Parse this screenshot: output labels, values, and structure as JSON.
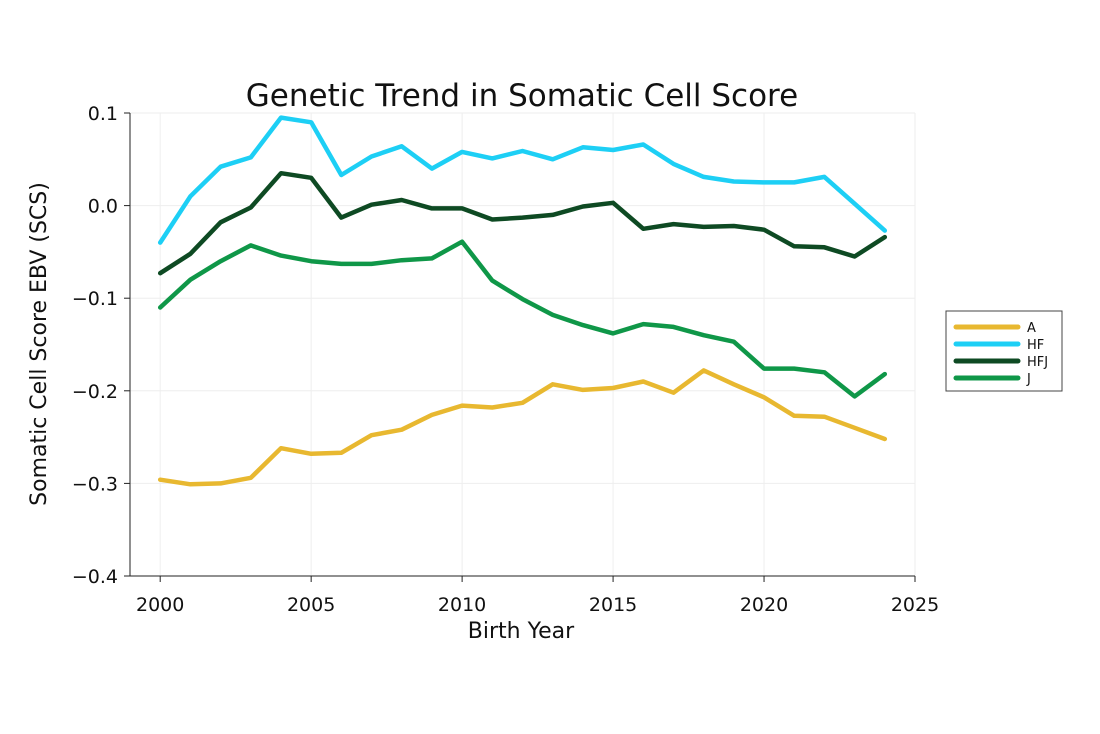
{
  "chart_data": {
    "type": "line",
    "title": "Genetic Trend in Somatic Cell Score",
    "xlabel": "Birth Year",
    "ylabel": "Somatic Cell Score EBV (SCS)",
    "xlim": [
      1999,
      2025
    ],
    "ylim": [
      -0.4,
      0.1
    ],
    "x_ticks": [
      2000,
      2005,
      2010,
      2015,
      2020,
      2025
    ],
    "x_tick_labels": [
      "2000",
      "2005",
      "2010",
      "2015",
      "2020",
      "2025"
    ],
    "y_ticks": [
      -0.4,
      -0.3,
      -0.2,
      -0.1,
      0.0,
      0.1
    ],
    "y_tick_labels": [
      "−0.4",
      "−0.3",
      "−0.2",
      "−0.1",
      "0.0",
      "0.1"
    ],
    "grid": true,
    "legend_position": "right",
    "x": [
      2000,
      2001,
      2002,
      2003,
      2004,
      2005,
      2006,
      2007,
      2008,
      2009,
      2010,
      2011,
      2012,
      2013,
      2014,
      2015,
      2016,
      2017,
      2018,
      2019,
      2020,
      2021,
      2022,
      2023,
      2024
    ],
    "series": [
      {
        "name": "A",
        "color": "#E8B830",
        "values": [
          -0.296,
          -0.301,
          -0.3,
          -0.294,
          -0.262,
          -0.268,
          -0.267,
          -0.248,
          -0.242,
          -0.226,
          -0.216,
          -0.218,
          -0.213,
          -0.193,
          -0.199,
          -0.197,
          -0.19,
          -0.202,
          -0.178,
          -0.193,
          -0.207,
          -0.227,
          -0.228,
          -0.24,
          -0.252
        ]
      },
      {
        "name": "HF",
        "color": "#1DCFF5",
        "values": [
          -0.04,
          0.01,
          0.042,
          0.052,
          0.095,
          0.09,
          0.033,
          0.053,
          0.064,
          0.04,
          0.058,
          0.051,
          0.059,
          0.05,
          0.063,
          0.06,
          0.066,
          0.045,
          0.031,
          0.026,
          0.025,
          0.025,
          0.031,
          0.002,
          -0.027
        ]
      },
      {
        "name": "HFJ",
        "color": "#0E4A23",
        "values": [
          -0.073,
          -0.052,
          -0.018,
          -0.002,
          0.035,
          0.03,
          -0.013,
          0.001,
          0.006,
          -0.003,
          -0.003,
          -0.015,
          -0.013,
          -0.01,
          -0.001,
          0.003,
          -0.025,
          -0.02,
          -0.023,
          -0.022,
          -0.026,
          -0.044,
          -0.045,
          -0.055,
          -0.034
        ]
      },
      {
        "name": "J",
        "color": "#0F9748",
        "values": [
          -0.11,
          -0.08,
          -0.06,
          -0.043,
          -0.054,
          -0.06,
          -0.063,
          -0.063,
          -0.059,
          -0.057,
          -0.039,
          -0.081,
          -0.101,
          -0.118,
          -0.129,
          -0.138,
          -0.128,
          -0.131,
          -0.14,
          -0.147,
          -0.176,
          -0.176,
          -0.18,
          -0.206,
          -0.182
        ]
      }
    ]
  }
}
